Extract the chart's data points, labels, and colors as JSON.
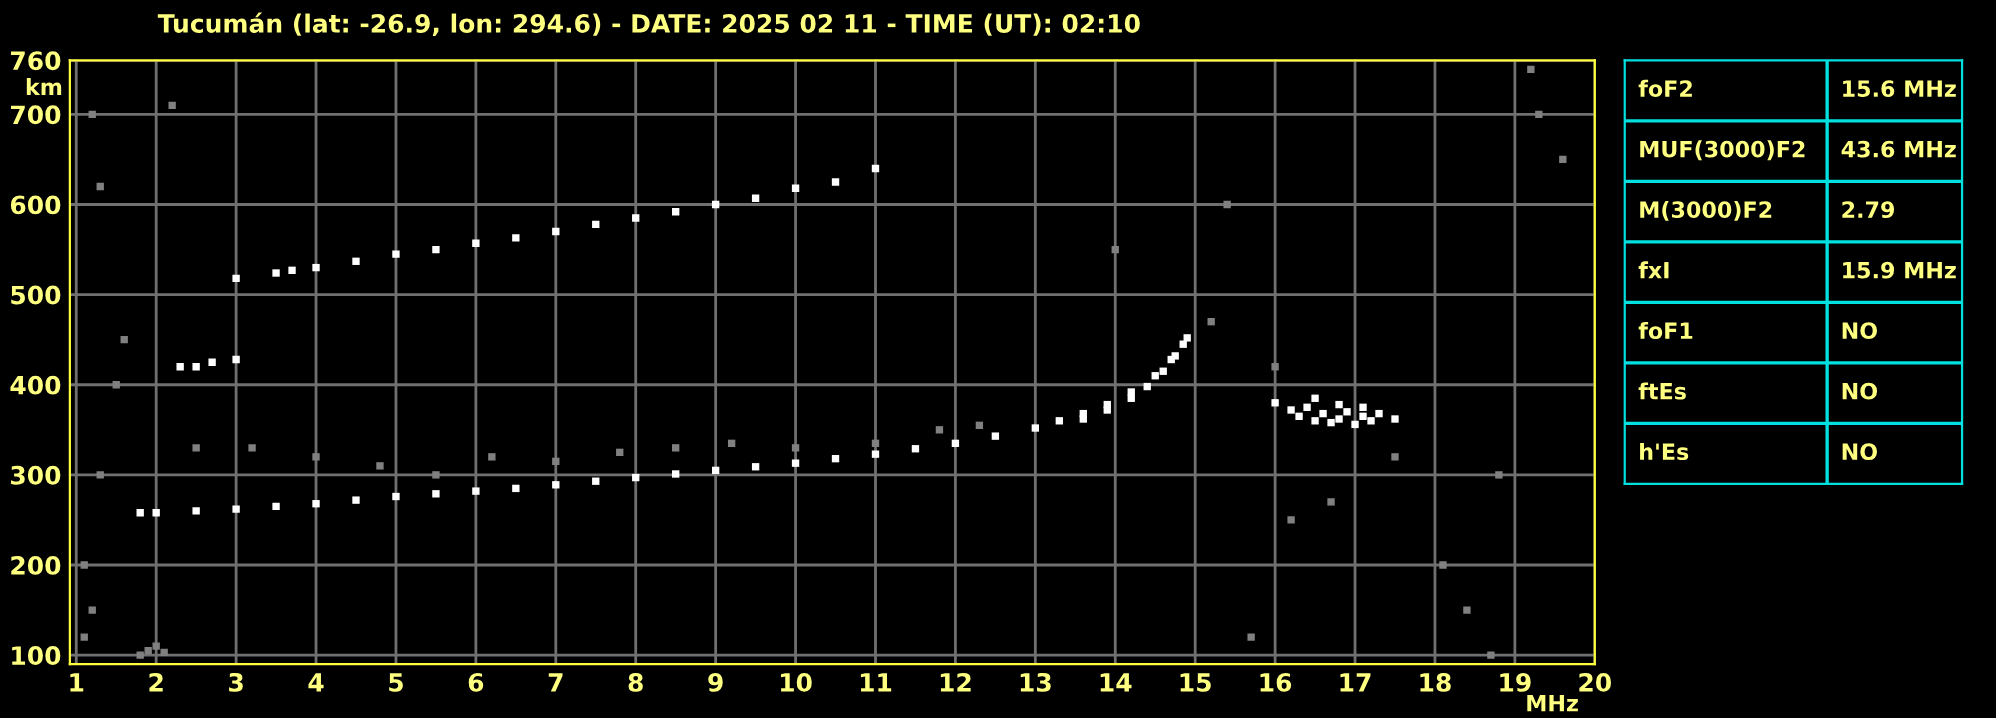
{
  "chart_data": [
    {
      "type": "scatter",
      "title": "Tucumán (lat: -26.9, lon: 294.6) - DATE: 2025 02 11 - TIME (UT): 02:10",
      "xlabel": "MHz",
      "ylabel": "km",
      "xlim": [
        0.92,
        20
      ],
      "ylim": [
        90,
        760
      ],
      "xticks": [
        1,
        2,
        3,
        4,
        5,
        6,
        7,
        8,
        9,
        10,
        11,
        12,
        13,
        14,
        15,
        16,
        17,
        18,
        19,
        20
      ],
      "yticks": [
        100,
        200,
        300,
        400,
        500,
        600,
        700,
        760
      ],
      "grid": true,
      "legend": false,
      "marker": "square",
      "series": [
        {
          "color": "#ffffff",
          "x": [
            1.8,
            2,
            2.5,
            3,
            3.5,
            4,
            4.5,
            5,
            5.5,
            6,
            6.5,
            7,
            7.5,
            8,
            8.5,
            9,
            9.5,
            10,
            10.5,
            11,
            11.5,
            12,
            12.5,
            13,
            13.3,
            13.6,
            13.9,
            14.2,
            14.5,
            14.7,
            14.85
          ],
          "values": [
            258,
            258,
            260,
            262,
            265,
            268,
            272,
            276,
            279,
            282,
            285,
            289,
            293,
            297,
            301,
            305,
            309,
            313,
            318,
            323,
            329,
            335,
            343,
            352,
            360,
            368,
            378,
            392,
            410,
            428,
            445
          ]
        },
        {
          "color": "#ffffff",
          "x": [
            13.6,
            13.9,
            14.2,
            14.4,
            14.6,
            14.75,
            14.9
          ],
          "values": [
            362,
            372,
            385,
            398,
            415,
            432,
            452
          ]
        },
        {
          "color": "#ffffff",
          "x": [
            3,
            3.5,
            3.7,
            4,
            4.5,
            5,
            5.5,
            6,
            6.5,
            7,
            7.5,
            8,
            8.5,
            9,
            9.5,
            10,
            10.5,
            11
          ],
          "values": [
            518,
            524,
            527,
            530,
            537,
            545,
            550,
            557,
            563,
            570,
            578,
            585,
            592,
            600,
            607,
            618,
            625,
            640
          ]
        },
        {
          "color": "#ffffff",
          "x": [
            2.3,
            2.5,
            2.7,
            3
          ],
          "values": [
            420,
            420,
            425,
            428
          ]
        },
        {
          "color": "#ffffff",
          "x": [
            16,
            16.2,
            16.3,
            16.4,
            16.5,
            16.6,
            16.7,
            16.8,
            16.9,
            17,
            17.1,
            17.2,
            17.3,
            17.5,
            16.5,
            16.8,
            17.1
          ],
          "values": [
            380,
            372,
            365,
            375,
            360,
            368,
            358,
            362,
            370,
            356,
            365,
            360,
            368,
            362,
            385,
            378,
            375
          ]
        },
        {
          "color": "#808080",
          "x": [
            1.1,
            1.1,
            1.2,
            1.3,
            1.5,
            1.6,
            1.8,
            1.9,
            2,
            2.1,
            1.2,
            1.3,
            2.2,
            2.5,
            3.2,
            4,
            4.8,
            5.5,
            6.2,
            7,
            7.8,
            8.5,
            9.2,
            10,
            11,
            11.8,
            12.3,
            14,
            15.4,
            15.7,
            16.2,
            16.7,
            17.5,
            18.1,
            18.4,
            18.8,
            19.3,
            19.6,
            15.2,
            16,
            18.7,
            19.2
          ],
          "values": [
            200,
            120,
            150,
            300,
            400,
            450,
            100,
            105,
            110,
            103,
            700,
            620,
            710,
            330,
            330,
            320,
            310,
            300,
            320,
            315,
            325,
            330,
            335,
            330,
            335,
            350,
            355,
            550,
            600,
            120,
            250,
            270,
            320,
            200,
            150,
            300,
            700,
            650,
            470,
            420,
            100,
            750
          ]
        }
      ]
    },
    {
      "type": "other",
      "annotations": [
        "foF2",
        "15.6 MHz",
        "MUF(3000)F2",
        "43.6 MHz",
        "M(3000)F2",
        "2.79",
        "fxI",
        "15.9 MHz",
        "foF1",
        "NO",
        "ftEs",
        "NO",
        "h'Es",
        "NO"
      ]
    }
  ]
}
